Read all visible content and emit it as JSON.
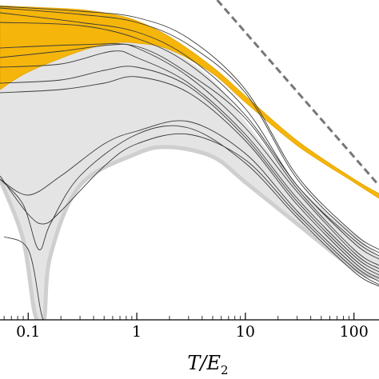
{
  "chart_data": {
    "type": "line",
    "xlabel": "T/E",
    "xlabel_subscript": "2",
    "xscale": "log",
    "xlim": [
      0.055,
      170
    ],
    "yscale": "linear",
    "ylim": [
      0,
      1
    ],
    "x_ticks": [
      {
        "value": 0.1,
        "label": "0.1"
      },
      {
        "value": 1,
        "label": "1"
      },
      {
        "value": 10,
        "label": "10"
      },
      {
        "value": 100,
        "label": "100"
      }
    ],
    "grid": false,
    "legend": "none",
    "colors": {
      "gold_band": "#f5b50a",
      "gold_band_edge": "#e3a600",
      "gray_band": "#e4e4e4",
      "gray_band_edge": "#cfcfcf",
      "curves": "#3a3a3a",
      "dashed": "#777777"
    },
    "gold_band": {
      "upper": [
        [
          0.055,
          0.982
        ],
        [
          0.1,
          0.978
        ],
        [
          0.3,
          0.97
        ],
        [
          0.6,
          0.955
        ],
        [
          1,
          0.935
        ],
        [
          2,
          0.885
        ],
        [
          5,
          0.79
        ],
        [
          10,
          0.7
        ],
        [
          30,
          0.56
        ],
        [
          100,
          0.44
        ],
        [
          170,
          0.395
        ]
      ],
      "lower": [
        [
          0.055,
          0.72
        ],
        [
          0.1,
          0.775
        ],
        [
          0.3,
          0.84
        ],
        [
          0.6,
          0.865
        ],
        [
          1,
          0.865
        ],
        [
          2,
          0.845
        ],
        [
          5,
          0.77
        ],
        [
          10,
          0.68
        ],
        [
          30,
          0.545
        ],
        [
          100,
          0.43
        ],
        [
          170,
          0.38
        ]
      ]
    },
    "gray_band": {
      "upper": [
        [
          0.055,
          0.72
        ],
        [
          0.1,
          0.775
        ],
        [
          0.3,
          0.84
        ],
        [
          0.6,
          0.865
        ],
        [
          1,
          0.865
        ],
        [
          2,
          0.845
        ],
        [
          5,
          0.75
        ],
        [
          10,
          0.62
        ],
        [
          30,
          0.42
        ],
        [
          100,
          0.27
        ],
        [
          170,
          0.2
        ]
      ],
      "lower": [
        [
          0.055,
          0.44
        ],
        [
          0.09,
          0.25
        ],
        [
          0.115,
          0.02
        ],
        [
          0.14,
          0.0
        ],
        [
          0.16,
          0.2
        ],
        [
          0.3,
          0.42
        ],
        [
          1,
          0.52
        ],
        [
          2,
          0.54
        ],
        [
          5,
          0.51
        ],
        [
          10,
          0.43
        ],
        [
          30,
          0.3
        ],
        [
          100,
          0.16
        ],
        [
          170,
          0.13
        ]
      ]
    },
    "dashed_line": [
      [
        5.5,
        1.0
      ],
      [
        170,
        0.42
      ]
    ],
    "curves": [
      [
        [
          0.055,
          0.98
        ],
        [
          0.3,
          0.965
        ],
        [
          1,
          0.945
        ],
        [
          3,
          0.88
        ],
        [
          10,
          0.72
        ],
        [
          30,
          0.45
        ],
        [
          100,
          0.27
        ],
        [
          170,
          0.22
        ]
      ],
      [
        [
          0.055,
          0.975
        ],
        [
          0.3,
          0.955
        ],
        [
          1,
          0.93
        ],
        [
          3,
          0.86
        ],
        [
          10,
          0.71
        ],
        [
          30,
          0.44
        ],
        [
          100,
          0.26
        ],
        [
          170,
          0.21
        ]
      ],
      [
        [
          0.055,
          0.96
        ],
        [
          0.3,
          0.93
        ],
        [
          1,
          0.9
        ],
        [
          3,
          0.82
        ],
        [
          10,
          0.66
        ],
        [
          30,
          0.42
        ],
        [
          100,
          0.25
        ],
        [
          170,
          0.2
        ]
      ],
      [
        [
          0.055,
          0.93
        ],
        [
          0.3,
          0.92
        ],
        [
          1,
          0.88
        ],
        [
          3,
          0.8
        ],
        [
          10,
          0.64
        ],
        [
          30,
          0.42
        ],
        [
          100,
          0.24
        ],
        [
          170,
          0.19
        ]
      ],
      [
        [
          0.055,
          0.85
        ],
        [
          0.3,
          0.86
        ],
        [
          1,
          0.855
        ],
        [
          3,
          0.77
        ],
        [
          10,
          0.63
        ],
        [
          30,
          0.41
        ],
        [
          100,
          0.22
        ],
        [
          170,
          0.17
        ]
      ],
      [
        [
          0.055,
          0.82
        ],
        [
          0.2,
          0.84
        ],
        [
          0.6,
          0.86
        ],
        [
          1,
          0.85
        ],
        [
          3,
          0.76
        ],
        [
          10,
          0.6
        ],
        [
          30,
          0.4
        ],
        [
          100,
          0.21
        ],
        [
          170,
          0.16
        ]
      ],
      [
        [
          0.055,
          0.79
        ],
        [
          0.2,
          0.8
        ],
        [
          0.6,
          0.84
        ],
        [
          1,
          0.82
        ],
        [
          3,
          0.74
        ],
        [
          10,
          0.58
        ],
        [
          30,
          0.38
        ],
        [
          100,
          0.2
        ],
        [
          170,
          0.15
        ]
      ],
      [
        [
          0.055,
          0.74
        ],
        [
          0.2,
          0.75
        ],
        [
          0.5,
          0.78
        ],
        [
          1,
          0.79
        ],
        [
          3,
          0.73
        ],
        [
          10,
          0.57
        ],
        [
          30,
          0.37
        ],
        [
          100,
          0.19
        ],
        [
          170,
          0.14
        ]
      ],
      [
        [
          0.055,
          0.71
        ],
        [
          0.2,
          0.72
        ],
        [
          0.5,
          0.74
        ],
        [
          1,
          0.76
        ],
        [
          3,
          0.71
        ],
        [
          10,
          0.56
        ],
        [
          30,
          0.36
        ],
        [
          100,
          0.18
        ],
        [
          170,
          0.13
        ]
      ],
      [
        [
          0.055,
          0.44
        ],
        [
          0.09,
          0.36
        ],
        [
          0.125,
          0.22
        ],
        [
          0.16,
          0.3
        ],
        [
          0.3,
          0.45
        ],
        [
          1,
          0.58
        ],
        [
          3,
          0.6
        ],
        [
          10,
          0.49
        ],
        [
          30,
          0.32
        ],
        [
          100,
          0.15
        ],
        [
          170,
          0.105
        ]
      ],
      [
        [
          0.055,
          0.45
        ],
        [
          0.1,
          0.33
        ],
        [
          0.14,
          0.3
        ],
        [
          0.2,
          0.34
        ],
        [
          0.5,
          0.48
        ],
        [
          1,
          0.55
        ],
        [
          3,
          0.58
        ],
        [
          10,
          0.5
        ],
        [
          30,
          0.33
        ],
        [
          100,
          0.16
        ],
        [
          170,
          0.11
        ]
      ],
      [
        [
          0.055,
          0.44
        ],
        [
          0.1,
          0.39
        ],
        [
          0.2,
          0.45
        ],
        [
          0.5,
          0.55
        ],
        [
          1,
          0.59
        ],
        [
          3,
          0.62
        ],
        [
          10,
          0.52
        ],
        [
          30,
          0.34
        ],
        [
          100,
          0.17
        ],
        [
          170,
          0.12
        ]
      ],
      [
        [
          0.06,
          0.26
        ],
        [
          0.1,
          0.22
        ],
        [
          0.13,
          0.03
        ],
        [
          0.138,
          0.0
        ]
      ]
    ]
  }
}
